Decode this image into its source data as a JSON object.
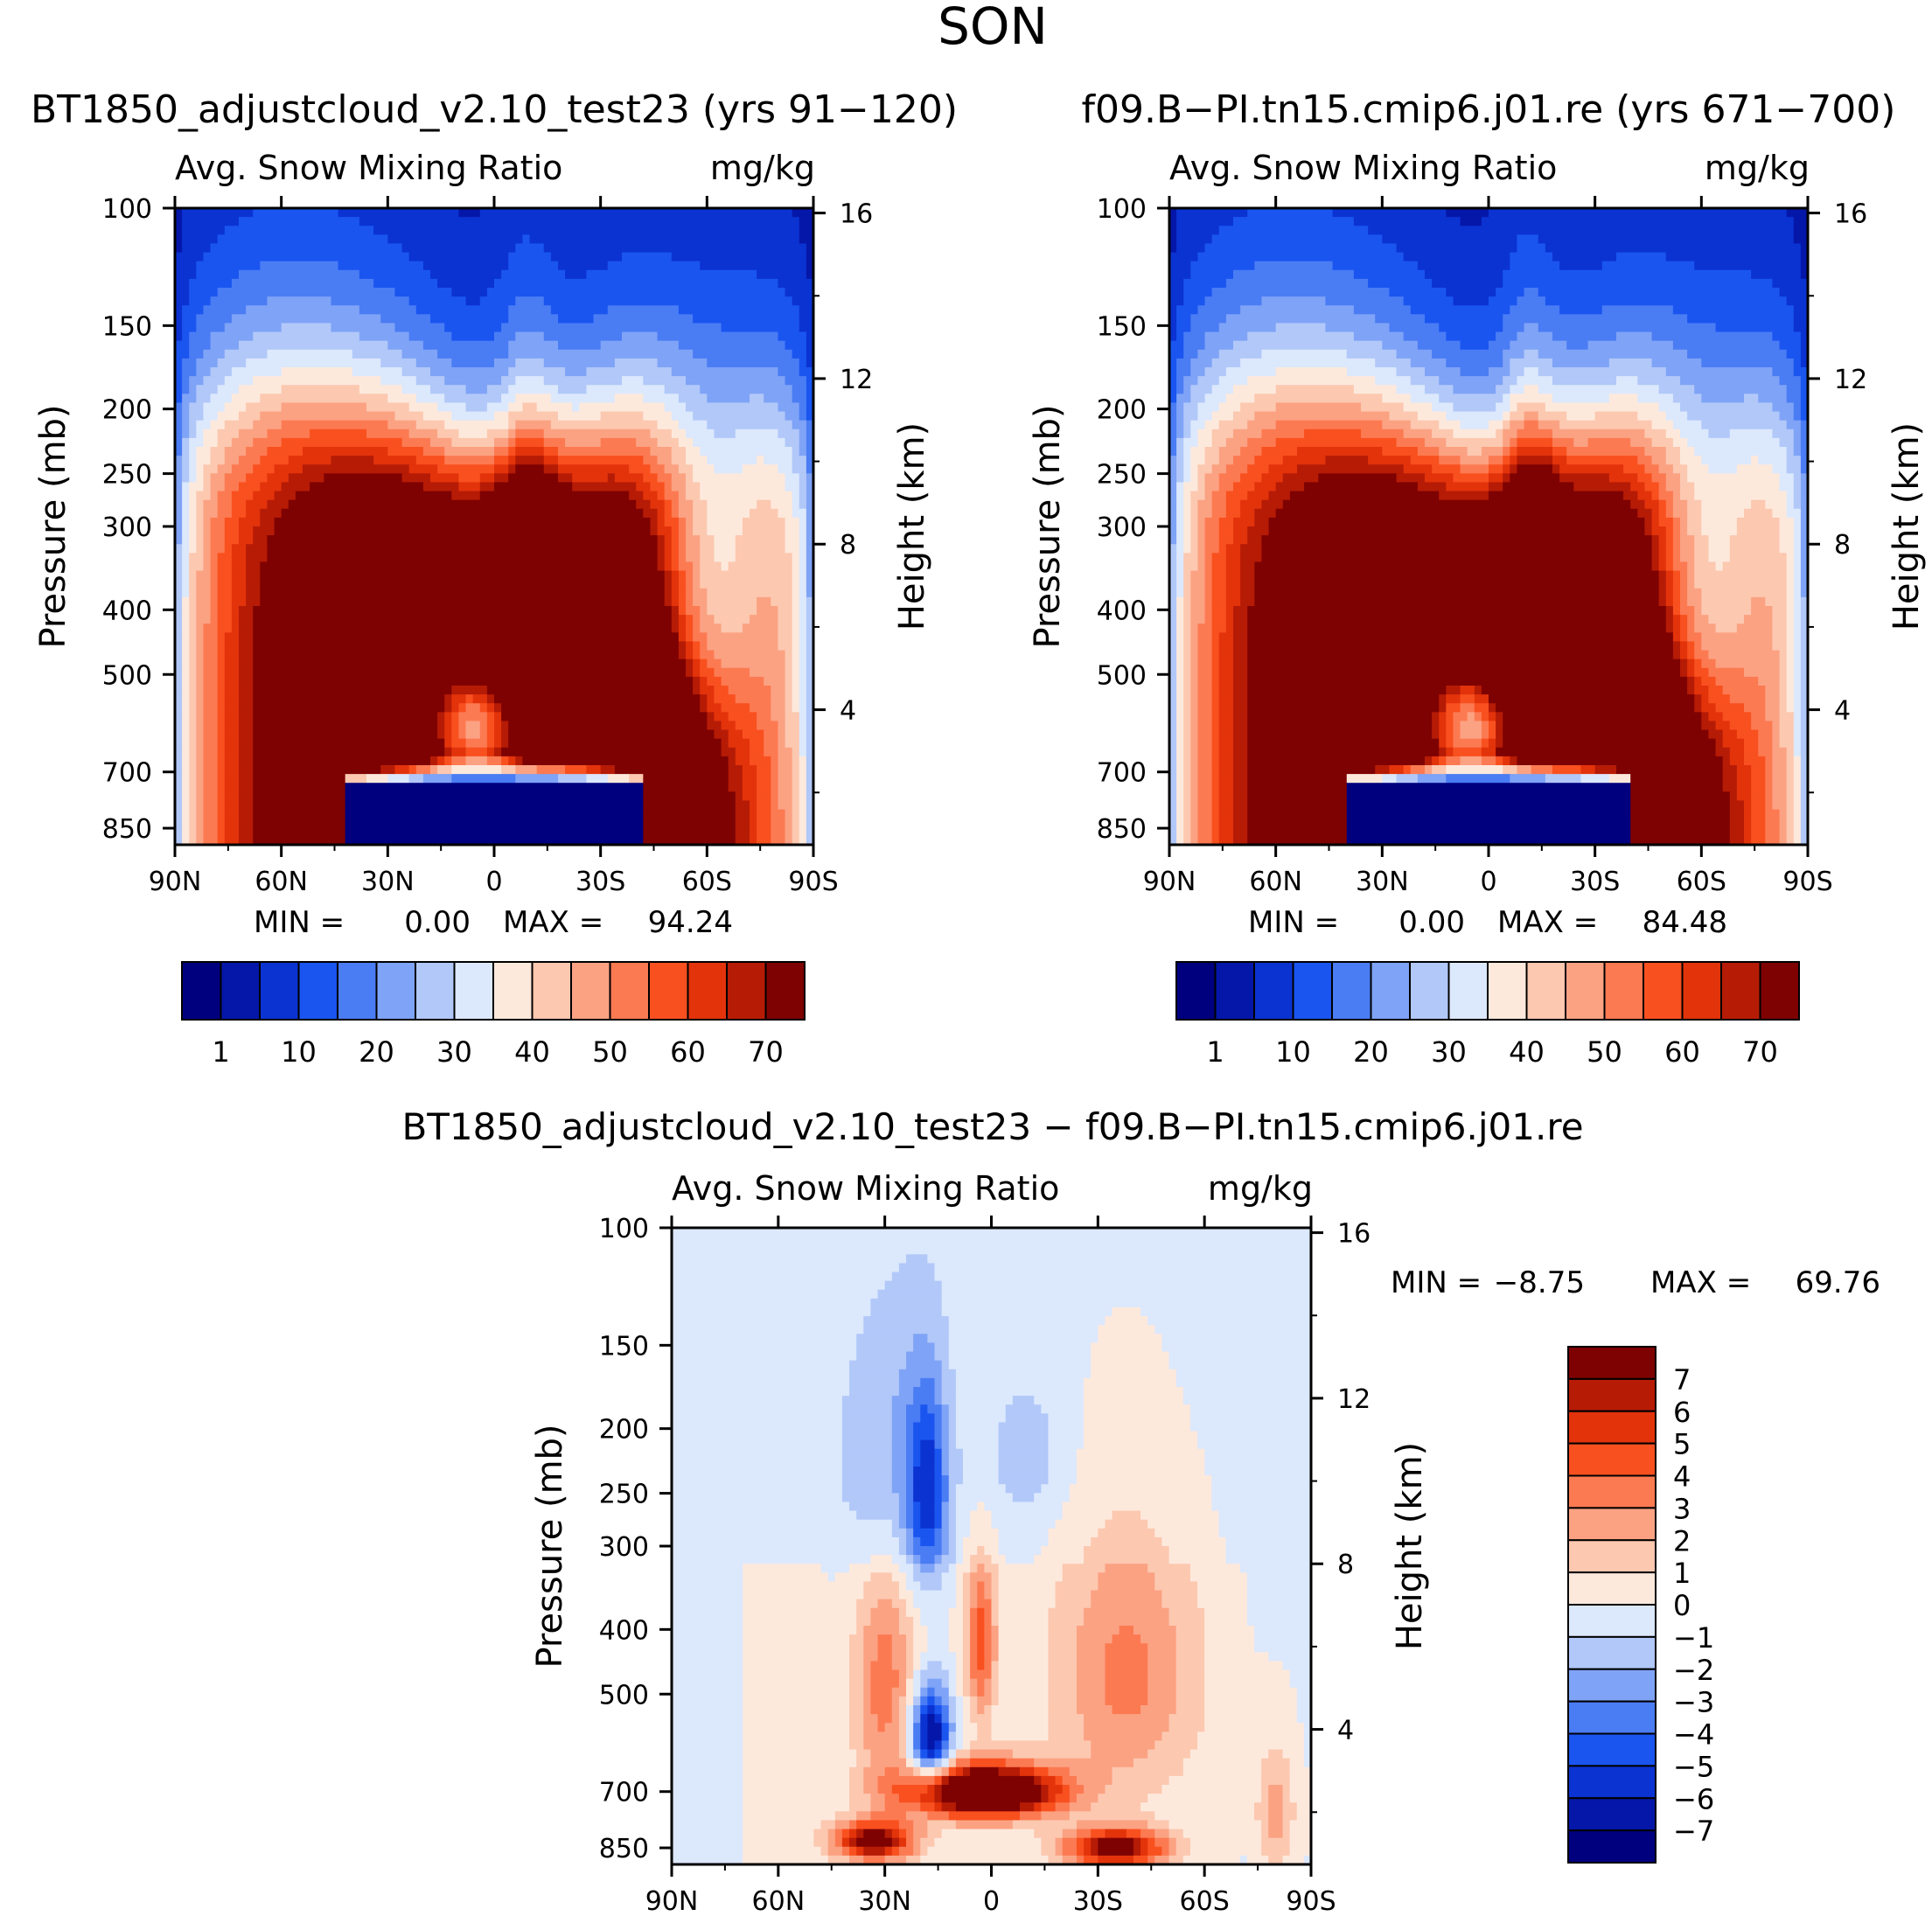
{
  "figure": {
    "title": "SON"
  },
  "colors": {
    "seq": [
      "#00007e",
      "#0517a9",
      "#0b33d2",
      "#1a55f0",
      "#4a7cf4",
      "#7fa3f6",
      "#b1c8f9",
      "#dce8fc",
      "#fde9dc",
      "#fcc8b0",
      "#fba283",
      "#fc7a52",
      "#f9501f",
      "#e3330b",
      "#b61b06",
      "#7e0202"
    ],
    "diff": [
      "#00007e",
      "#0517a9",
      "#0b33d2",
      "#1a55f0",
      "#4a7cf4",
      "#7fa3f6",
      "#b1c8f9",
      "#dce8fc",
      "#fde9dc",
      "#fcc8b0",
      "#fba283",
      "#fc7a52",
      "#f9501f",
      "#e3330b",
      "#b61b06",
      "#7e0202"
    ]
  },
  "chart_data": [
    {
      "type": "heatmap",
      "name": "panel-1",
      "title": "BT1850_adjustcloud_v2.10_test23 (yrs 91−120)",
      "left_string": "Avg. Snow Mixing Ratio",
      "right_string": "mg/kg",
      "ylabel": "Pressure (mb)",
      "ylabel_right": "Height (km)",
      "x_ticks": [
        "90N",
        "60N",
        "30N",
        "0",
        "30S",
        "60S",
        "90S"
      ],
      "y_ticks": [
        "100",
        "150",
        "200",
        "250",
        "300",
        "400",
        "500",
        "700",
        "850"
      ],
      "y_tick_values": [
        100,
        150,
        200,
        250,
        300,
        400,
        500,
        700,
        850
      ],
      "y_right_ticks": [
        "16",
        "12",
        "8",
        "4"
      ],
      "y_right_values": [
        16,
        12,
        8,
        4
      ],
      "xlim": [
        -90,
        90
      ],
      "ylim": [
        100,
        900
      ],
      "min_label": "MIN =",
      "min_value": "0.00",
      "max_label": "MAX =",
      "max_value": "94.24",
      "colorbar_labels": [
        "1",
        "10",
        "20",
        "30",
        "40",
        "50",
        "60",
        "70"
      ],
      "field": {
        "kind": "model",
        "max": 94.24,
        "peak_lat": -8,
        "hole": 1.0
      }
    },
    {
      "type": "heatmap",
      "name": "panel-2",
      "title": "f09.B−PI.tn15.cmip6.j01.re (yrs 671−700)",
      "left_string": "Avg. Snow Mixing Ratio",
      "right_string": "mg/kg",
      "ylabel": "Pressure (mb)",
      "ylabel_right": "Height (km)",
      "x_ticks": [
        "90N",
        "60N",
        "30N",
        "0",
        "30S",
        "60S",
        "90S"
      ],
      "y_ticks": [
        "100",
        "150",
        "200",
        "250",
        "300",
        "400",
        "500",
        "700",
        "850"
      ],
      "y_tick_values": [
        100,
        150,
        200,
        250,
        300,
        400,
        500,
        700,
        850
      ],
      "y_right_ticks": [
        "16",
        "12",
        "8",
        "4"
      ],
      "y_right_values": [
        16,
        12,
        8,
        4
      ],
      "xlim": [
        -90,
        90
      ],
      "ylim": [
        100,
        900
      ],
      "min_label": "MIN =",
      "min_value": "0.00",
      "max_label": "MAX =",
      "max_value": "84.48",
      "colorbar_labels": [
        "1",
        "10",
        "20",
        "30",
        "40",
        "50",
        "60",
        "70"
      ],
      "field": {
        "kind": "model",
        "max": 84.48,
        "peak_lat": -10,
        "hole": 0.9
      }
    },
    {
      "type": "heatmap",
      "name": "panel-diff",
      "title": "BT1850_adjustcloud_v2.10_test23 − f09.B−PI.tn15.cmip6.j01.re",
      "left_string": "Avg. Snow Mixing Ratio",
      "right_string": "mg/kg",
      "ylabel": "Pressure (mb)",
      "ylabel_right": "Height (km)",
      "x_ticks": [
        "90N",
        "60N",
        "30N",
        "0",
        "30S",
        "60S",
        "90S"
      ],
      "y_ticks": [
        "100",
        "150",
        "200",
        "250",
        "300",
        "400",
        "500",
        "700",
        "850"
      ],
      "y_tick_values": [
        100,
        150,
        200,
        250,
        300,
        400,
        500,
        700,
        850
      ],
      "y_right_ticks": [
        "16",
        "12",
        "8",
        "4"
      ],
      "y_right_values": [
        16,
        12,
        8,
        4
      ],
      "xlim": [
        -90,
        90
      ],
      "ylim": [
        100,
        900
      ],
      "min_label": "MIN =",
      "min_value": "−8.75",
      "max_label": "MAX =",
      "max_value": "69.76",
      "colorbar_labels": [
        "7",
        "6",
        "5",
        "4",
        "3",
        "2",
        "1",
        "0",
        "−1",
        "−2",
        "−3",
        "−4",
        "−5",
        "−6",
        "−7"
      ],
      "field": {
        "kind": "diff",
        "min": -8.75,
        "max": 69.76
      }
    }
  ]
}
